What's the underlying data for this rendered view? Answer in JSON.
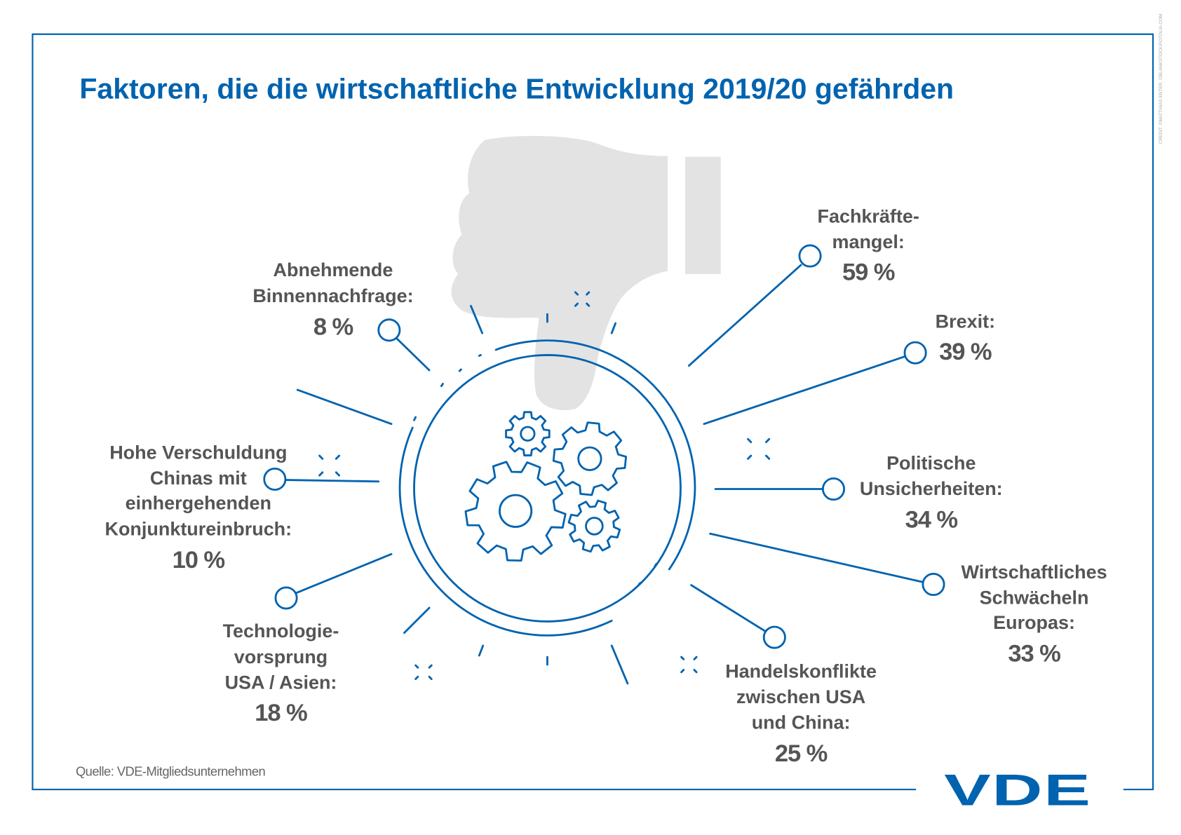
{
  "title": "Faktoren, die die wirtschaftliche Entwicklung 2019/20 gefährden",
  "credit": "CREDIT: ©MATTHIAS ENTER, ©BLANKSTOCK/FOTOLIA.COM",
  "source": "Quelle: VDE-Mitgliedsunternehmen",
  "logo": "VDE",
  "colors": {
    "accent": "#0063af",
    "text": "#555555",
    "thumb": "#e3e3e3"
  },
  "icons": [
    "thumbs-down-icon",
    "gears-icon"
  ],
  "factors": [
    {
      "lines": [
        "Fachkräfte-",
        "mangel:"
      ],
      "value": "59 %"
    },
    {
      "lines": [
        "Brexit:"
      ],
      "value": "39 %"
    },
    {
      "lines": [
        "Politische",
        "Unsicherheiten:"
      ],
      "value": "34 %"
    },
    {
      "lines": [
        "Wirtschaftliches",
        "Schwächeln",
        "Europas:"
      ],
      "value": "33 %"
    },
    {
      "lines": [
        "Handelskonflikte",
        "zwischen USA",
        "und China:"
      ],
      "value": "25 %"
    },
    {
      "lines": [
        "Technologie-",
        "vorsprung",
        "USA / Asien:"
      ],
      "value": "18 %"
    },
    {
      "lines": [
        "Hohe Verschuldung",
        "Chinas mit",
        "einhergehenden",
        "Konjunktureinbruch:"
      ],
      "value": "10 %"
    },
    {
      "lines": [
        "Abnehmende",
        "Binnennachfrage:"
      ],
      "value": "8 %"
    }
  ]
}
